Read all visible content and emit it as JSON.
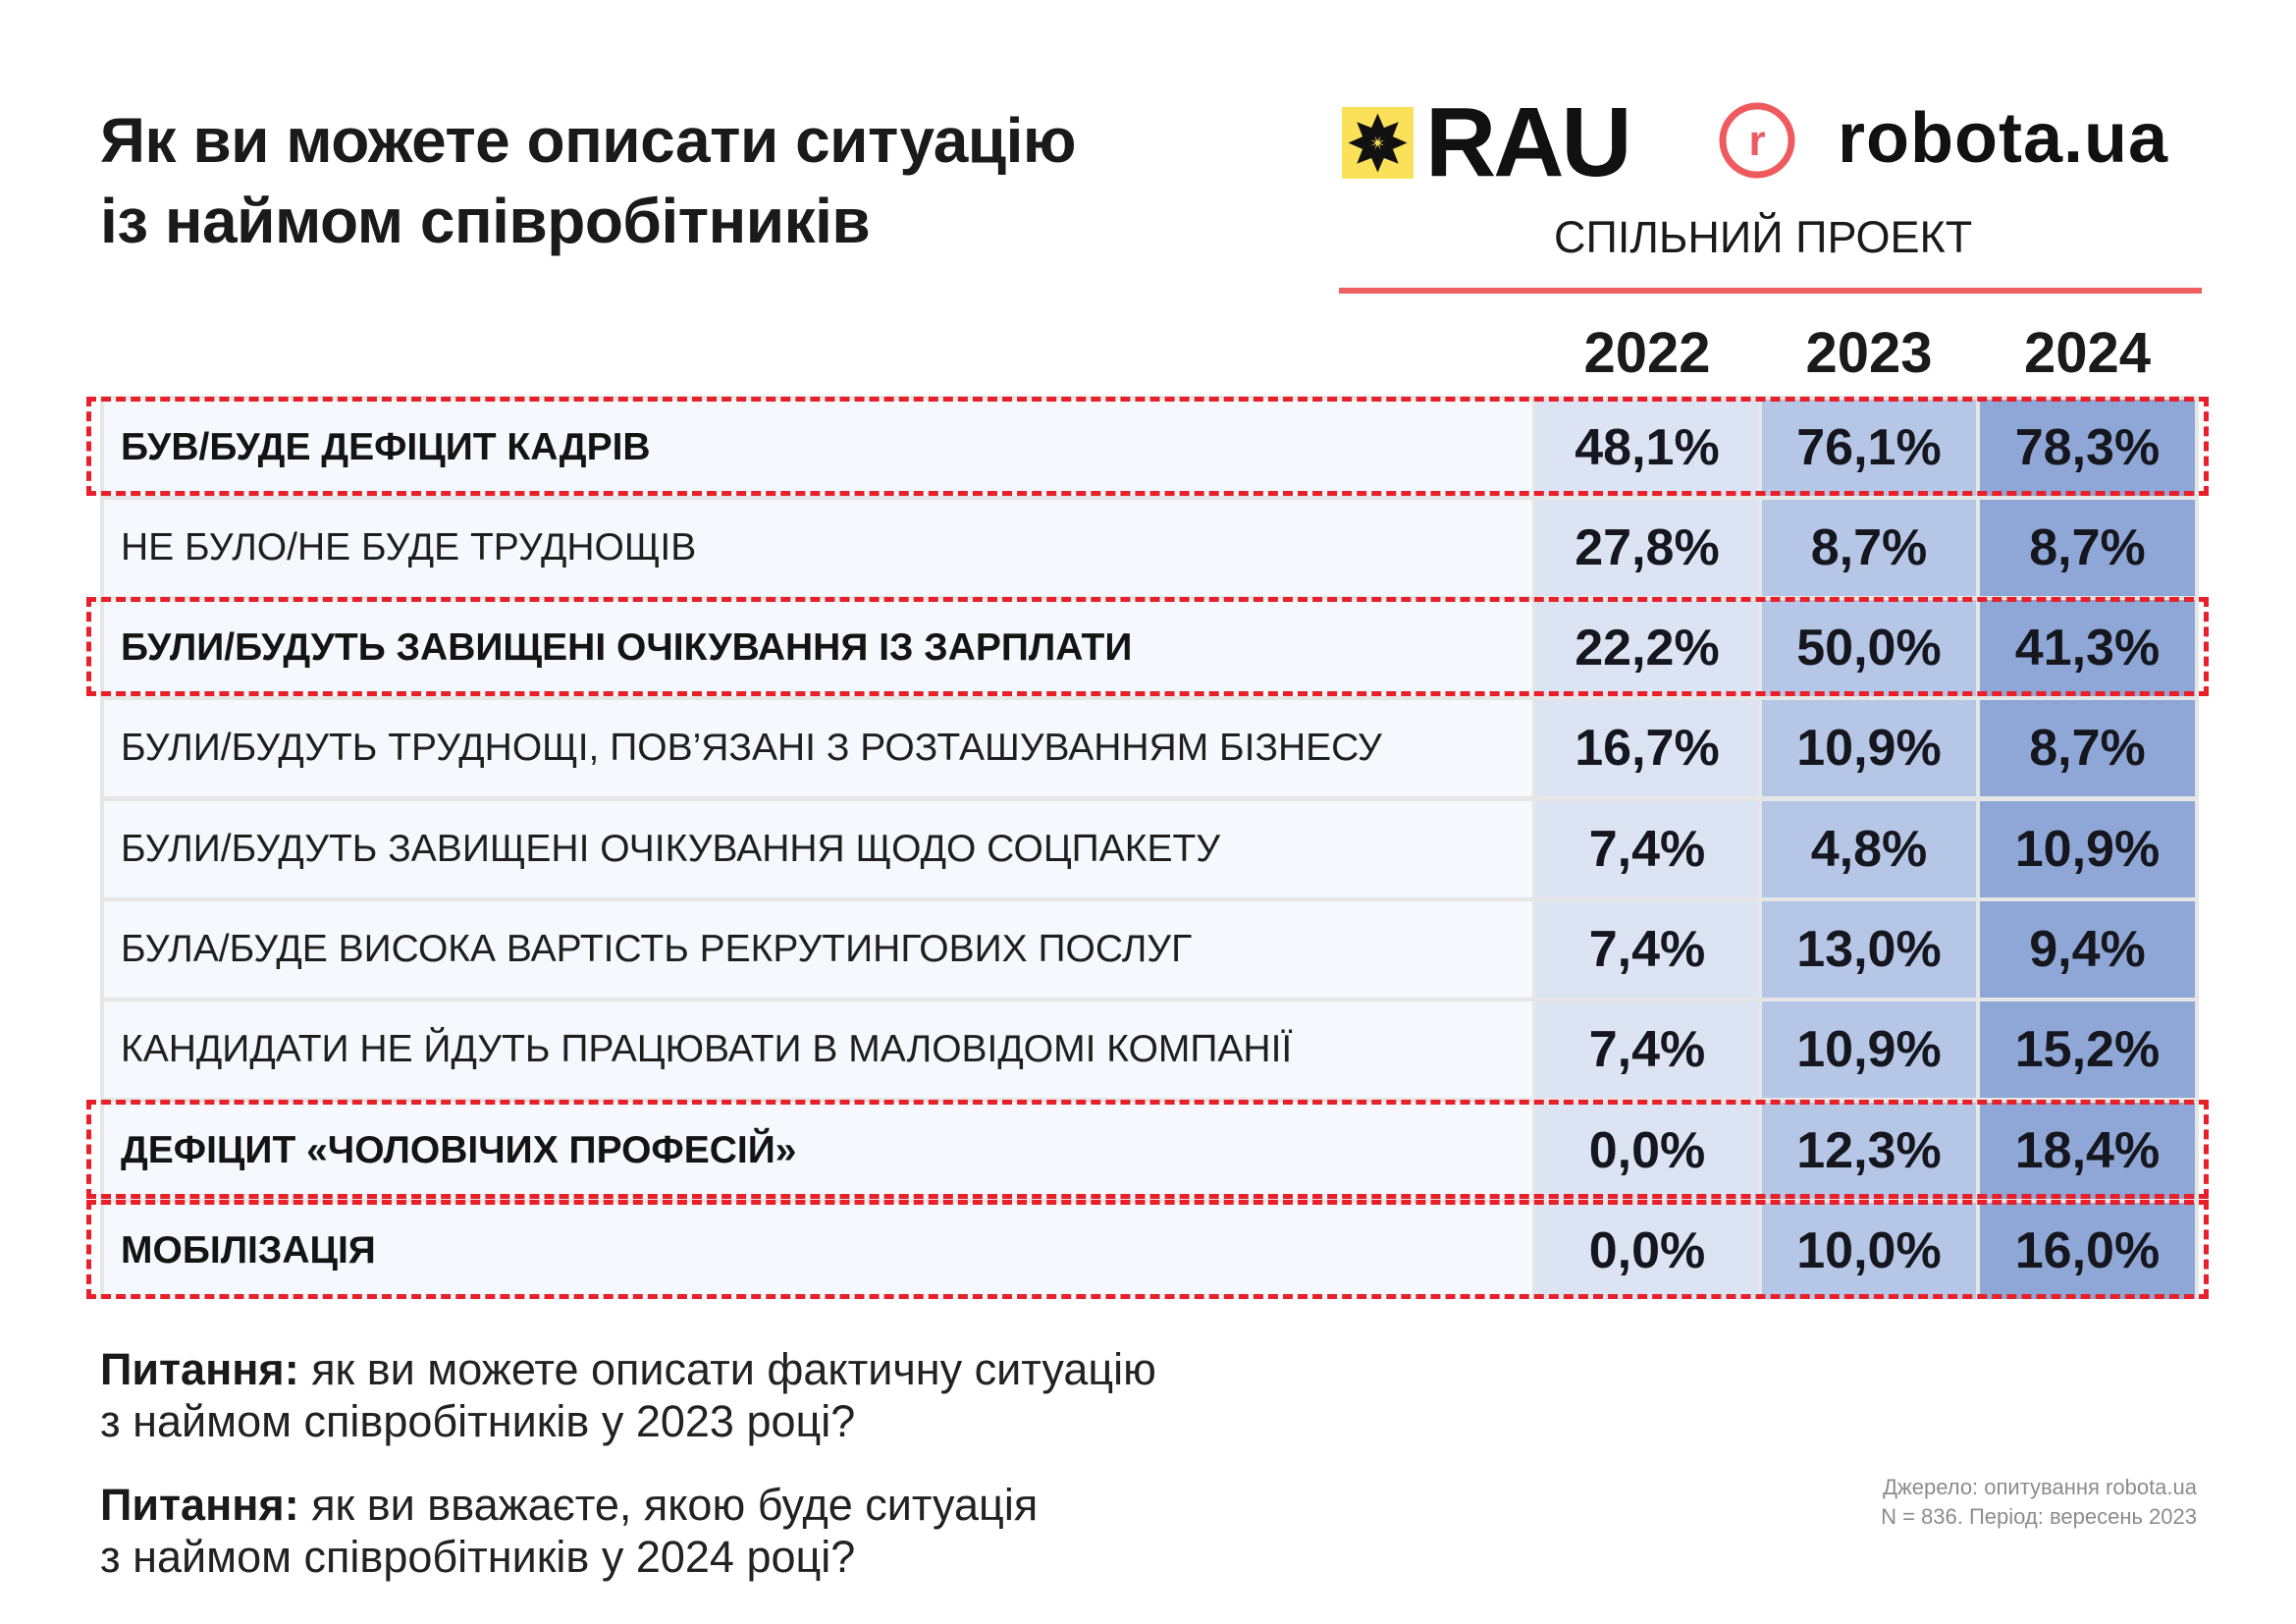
{
  "title": {
    "line1": "Як ви можете описати ситуацію",
    "line2": "із наймом співробітників"
  },
  "logos": {
    "rau": "RAU",
    "robota": "robota.ua",
    "robota_icon_letter": "r",
    "caption": "СПІЛЬНИЙ ПРОЕКТ"
  },
  "colors": {
    "rau_yellow": "#fbe15a",
    "robota_red": "#ef5a5f",
    "rule_red": "#ee5f5f",
    "highlight_dash": "#e8202a",
    "col_2022": "#dce3f3",
    "col_2023": "#b6c6e6",
    "col_2024": "#8fa7d6",
    "label_bg": "#f5f8fc",
    "grid": "#e6e6e6"
  },
  "table": {
    "years": [
      "2022",
      "2023",
      "2024"
    ],
    "rows": [
      {
        "label": "БУВ/БУДЕ ДЕФІЦИТ КАДРІВ",
        "values": [
          "48,1%",
          "76,1%",
          "78,3%"
        ],
        "highlighted": true
      },
      {
        "label": "НЕ БУЛО/НЕ БУДЕ ТРУДНОЩІВ",
        "values": [
          "27,8%",
          "8,7%",
          "8,7%"
        ],
        "highlighted": false
      },
      {
        "label": "БУЛИ/БУДУТЬ ЗАВИЩЕНІ ОЧІКУВАННЯ ІЗ ЗАРПЛАТИ",
        "values": [
          "22,2%",
          "50,0%",
          "41,3%"
        ],
        "highlighted": true
      },
      {
        "label": "БУЛИ/БУДУТЬ ТРУДНОЩІ, ПОВ’ЯЗАНІ З РОЗТАШУВАННЯМ БІЗНЕСУ",
        "values": [
          "16,7%",
          "10,9%",
          "8,7%"
        ],
        "highlighted": false
      },
      {
        "label": "БУЛИ/БУДУТЬ ЗАВИЩЕНІ ОЧІКУВАННЯ ЩОДО СОЦПАКЕТУ",
        "values": [
          "7,4%",
          "4,8%",
          "10,9%"
        ],
        "highlighted": false
      },
      {
        "label": "БУЛА/БУДЕ ВИСОКА ВАРТІСТЬ РЕКРУТИНГОВИХ ПОСЛУГ",
        "values": [
          "7,4%",
          "13,0%",
          "9,4%"
        ],
        "highlighted": false
      },
      {
        "label": "КАНДИДАТИ НЕ ЙДУТЬ ПРАЦЮВАТИ В МАЛОВІДОМІ КОМПАНІЇ",
        "values": [
          "7,4%",
          "10,9%",
          "15,2%"
        ],
        "highlighted": false
      },
      {
        "label": "ДЕФІЦИТ «ЧОЛОВІЧИХ ПРОФЕСІЙ»",
        "values": [
          "0,0%",
          "12,3%",
          "18,4%"
        ],
        "highlighted": true
      },
      {
        "label": "МОБІЛІЗАЦІЯ",
        "values": [
          "0,0%",
          "10,0%",
          "16,0%"
        ],
        "highlighted": true
      }
    ]
  },
  "notes": [
    {
      "prefix": "Питання:",
      "line1": " як ви можете описати фактичну ситуацію",
      "line2": "з наймом співробітників у 2023 році?"
    },
    {
      "prefix": "Питання:",
      "line1": " як ви вважаєте, якою буде ситуація",
      "line2": "з наймом співробітників у 2024 році?"
    }
  ],
  "source": {
    "line1": "Джерело: опитування robota.ua",
    "line2": "N = 836. Період: вересень 2023"
  }
}
